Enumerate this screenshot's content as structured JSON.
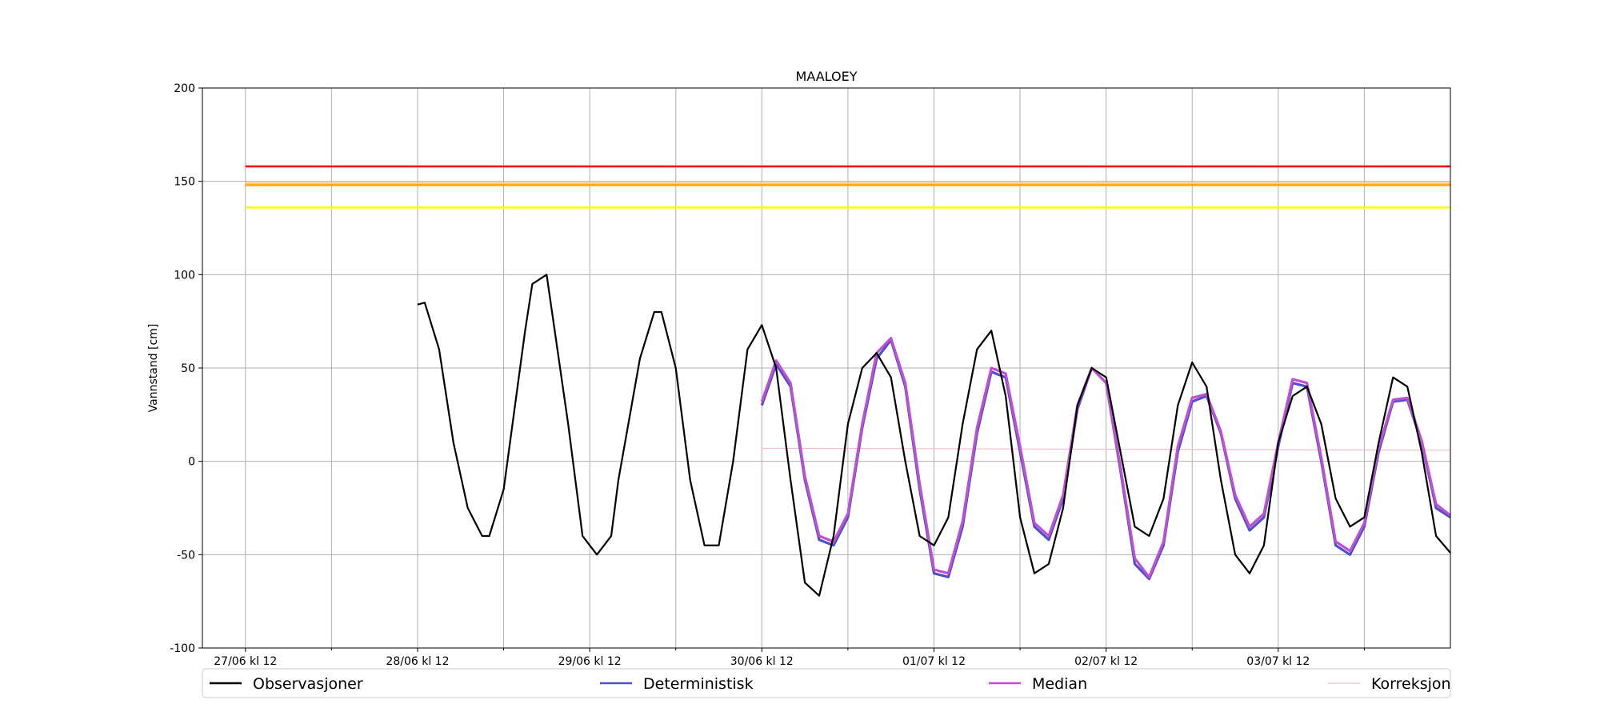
{
  "chart_data": {
    "type": "line",
    "title": "MAALOEY",
    "xlabel": "",
    "ylabel": "Vannstand [cm]",
    "ylim": [
      -100,
      200
    ],
    "xlim": [
      "2023-06-27T06:00",
      "2023-07-04T12:00"
    ],
    "x_major_ticks": [
      "2023-06-27T12:00",
      "2023-06-28T12:00",
      "2023-06-29T12:00",
      "2023-06-30T12:00",
      "2023-07-01T12:00",
      "2023-07-02T12:00",
      "2023-07-03T12:00"
    ],
    "x_tick_labels": [
      "27/06 kl 12",
      "28/06 kl 12",
      "29/06 kl 12",
      "30/06 kl 12",
      "01/07 kl 12",
      "02/07 kl 12",
      "03/07 kl 12"
    ],
    "x_minor_ticks": [
      "2023-06-28T00:00",
      "2023-06-29T00:00",
      "2023-06-30T00:00",
      "2023-07-01T00:00",
      "2023-07-02T00:00",
      "2023-07-03T00:00",
      "2023-07-04T00:00"
    ],
    "y_ticks": [
      -100,
      -50,
      0,
      50,
      100,
      150,
      200
    ],
    "grid": true,
    "legend_position": "bottom",
    "thresholds": [
      {
        "value": 158,
        "color": "#ff0000"
      },
      {
        "value": 149,
        "color": "#ffcc80"
      },
      {
        "value": 148,
        "color": "#ffa500"
      },
      {
        "value": 136,
        "color": "#ffff00"
      }
    ],
    "series": [
      {
        "name": "Observasjoner",
        "color": "#000000",
        "x": [
          "2023-06-28T12:00",
          "2023-06-28T13:00",
          "2023-06-28T15:00",
          "2023-06-28T17:00",
          "2023-06-28T19:00",
          "2023-06-28T21:00",
          "2023-06-28T22:00",
          "2023-06-29T00:00",
          "2023-06-29T03:00",
          "2023-06-29T04:00",
          "2023-06-29T06:00",
          "2023-06-29T09:00",
          "2023-06-29T11:00",
          "2023-06-29T13:00",
          "2023-06-29T15:00",
          "2023-06-29T16:00",
          "2023-06-29T19:00",
          "2023-06-29T21:00",
          "2023-06-29T22:00",
          "2023-06-30T00:00",
          "2023-06-30T02:00",
          "2023-06-30T04:00",
          "2023-06-30T06:00",
          "2023-06-30T08:00",
          "2023-06-30T10:00",
          "2023-06-30T12:00",
          "2023-06-30T14:00",
          "2023-06-30T16:00",
          "2023-06-30T18:00",
          "2023-06-30T20:00",
          "2023-06-30T22:00",
          "2023-07-01T00:00",
          "2023-07-01T02:00",
          "2023-07-01T04:00",
          "2023-07-01T06:00",
          "2023-07-01T08:00",
          "2023-07-01T10:00",
          "2023-07-01T12:00",
          "2023-07-01T14:00",
          "2023-07-01T16:00",
          "2023-07-01T18:00",
          "2023-07-01T20:00",
          "2023-07-01T22:00",
          "2023-07-02T00:00",
          "2023-07-02T02:00",
          "2023-07-02T04:00",
          "2023-07-02T06:00",
          "2023-07-02T08:00",
          "2023-07-02T10:00",
          "2023-07-02T12:00",
          "2023-07-02T14:00",
          "2023-07-02T16:00",
          "2023-07-02T18:00",
          "2023-07-02T20:00",
          "2023-07-02T22:00",
          "2023-07-03T00:00",
          "2023-07-03T02:00",
          "2023-07-03T04:00",
          "2023-07-03T06:00",
          "2023-07-03T08:00",
          "2023-07-03T10:00",
          "2023-07-03T12:00",
          "2023-07-03T14:00",
          "2023-07-03T16:00",
          "2023-07-03T18:00",
          "2023-07-03T20:00",
          "2023-07-03T22:00",
          "2023-07-04T00:00",
          "2023-07-04T02:00",
          "2023-07-04T04:00",
          "2023-07-04T06:00",
          "2023-07-04T08:00",
          "2023-07-04T10:00",
          "2023-07-04T12:00"
        ],
        "y": [
          84,
          85,
          60,
          10,
          -25,
          -40,
          -40,
          -15,
          70,
          95,
          100,
          20,
          -40,
          -50,
          -40,
          -10,
          55,
          80,
          80,
          50,
          -10,
          -45,
          -45,
          0,
          60,
          73,
          50,
          -10,
          -65,
          -72,
          -40,
          20,
          50,
          58,
          45,
          0,
          -40,
          -45,
          -30,
          20,
          60,
          70,
          35,
          -30,
          -60,
          -55,
          -25,
          30,
          50,
          45,
          5,
          -35,
          -40,
          -20,
          30,
          53,
          40,
          -10,
          -50,
          -60,
          -45,
          10,
          35,
          40,
          20,
          -20,
          -35,
          -30,
          10,
          45,
          40,
          5,
          -40,
          -49
        ]
      },
      {
        "name": "Deterministisk",
        "color": "#5050cc",
        "x": [
          "2023-06-30T12:00",
          "2023-06-30T14:00",
          "2023-06-30T16:00",
          "2023-06-30T18:00",
          "2023-06-30T20:00",
          "2023-06-30T22:00",
          "2023-07-01T00:00",
          "2023-07-01T02:00",
          "2023-07-01T04:00",
          "2023-07-01T06:00",
          "2023-07-01T08:00",
          "2023-07-01T10:00",
          "2023-07-01T12:00",
          "2023-07-01T14:00",
          "2023-07-01T16:00",
          "2023-07-01T18:00",
          "2023-07-01T20:00",
          "2023-07-01T22:00",
          "2023-07-02T00:00",
          "2023-07-02T02:00",
          "2023-07-02T04:00",
          "2023-07-02T06:00",
          "2023-07-02T08:00",
          "2023-07-02T10:00",
          "2023-07-02T12:00",
          "2023-07-02T14:00",
          "2023-07-02T16:00",
          "2023-07-02T18:00",
          "2023-07-02T20:00",
          "2023-07-02T22:00",
          "2023-07-03T00:00",
          "2023-07-03T02:00",
          "2023-07-03T04:00",
          "2023-07-03T06:00",
          "2023-07-03T08:00",
          "2023-07-03T10:00",
          "2023-07-03T12:00",
          "2023-07-03T14:00",
          "2023-07-03T16:00",
          "2023-07-03T18:00",
          "2023-07-03T20:00",
          "2023-07-03T22:00",
          "2023-07-04T00:00",
          "2023-07-04T02:00",
          "2023-07-04T04:00",
          "2023-07-04T06:00",
          "2023-07-04T08:00",
          "2023-07-04T10:00",
          "2023-07-04T12:00"
        ],
        "y": [
          30,
          52,
          40,
          -10,
          -42,
          -45,
          -30,
          18,
          55,
          65,
          40,
          -15,
          -60,
          -62,
          -35,
          15,
          48,
          45,
          5,
          -35,
          -42,
          -20,
          28,
          50,
          42,
          -5,
          -55,
          -63,
          -45,
          5,
          32,
          35,
          15,
          -20,
          -37,
          -30,
          8,
          42,
          40,
          0,
          -45,
          -50,
          -35,
          5,
          32,
          33,
          10,
          -25,
          -30
        ]
      },
      {
        "name": "Median",
        "color": "#c050d0",
        "x": [
          "2023-06-30T12:00",
          "2023-06-30T14:00",
          "2023-06-30T16:00",
          "2023-06-30T18:00",
          "2023-06-30T20:00",
          "2023-06-30T22:00",
          "2023-07-01T00:00",
          "2023-07-01T02:00",
          "2023-07-01T04:00",
          "2023-07-01T06:00",
          "2023-07-01T08:00",
          "2023-07-01T10:00",
          "2023-07-01T12:00",
          "2023-07-01T14:00",
          "2023-07-01T16:00",
          "2023-07-01T18:00",
          "2023-07-01T20:00",
          "2023-07-01T22:00",
          "2023-07-02T00:00",
          "2023-07-02T02:00",
          "2023-07-02T04:00",
          "2023-07-02T06:00",
          "2023-07-02T08:00",
          "2023-07-02T10:00",
          "2023-07-02T12:00",
          "2023-07-02T14:00",
          "2023-07-02T16:00",
          "2023-07-02T18:00",
          "2023-07-02T20:00",
          "2023-07-02T22:00",
          "2023-07-03T00:00",
          "2023-07-03T02:00",
          "2023-07-03T04:00",
          "2023-07-03T06:00",
          "2023-07-03T08:00",
          "2023-07-03T10:00",
          "2023-07-03T12:00",
          "2023-07-03T14:00",
          "2023-07-03T16:00",
          "2023-07-03T18:00",
          "2023-07-03T20:00",
          "2023-07-03T22:00",
          "2023-07-04T00:00",
          "2023-07-04T02:00",
          "2023-07-04T04:00",
          "2023-07-04T06:00",
          "2023-07-04T08:00",
          "2023-07-04T10:00",
          "2023-07-04T12:00"
        ],
        "y": [
          32,
          54,
          42,
          -8,
          -40,
          -43,
          -28,
          20,
          58,
          66,
          42,
          -12,
          -58,
          -60,
          -32,
          18,
          50,
          47,
          8,
          -33,
          -40,
          -18,
          30,
          50,
          42,
          -3,
          -52,
          -62,
          -43,
          8,
          34,
          36,
          16,
          -18,
          -35,
          -28,
          10,
          44,
          42,
          2,
          -43,
          -48,
          -33,
          7,
          33,
          34,
          11,
          -23,
          -29
        ]
      },
      {
        "name": "Korreksjon",
        "color": "#f0c0c8",
        "x": [
          "2023-06-30T12:00",
          "2023-07-04T12:00"
        ],
        "y": [
          7,
          6
        ]
      }
    ]
  }
}
